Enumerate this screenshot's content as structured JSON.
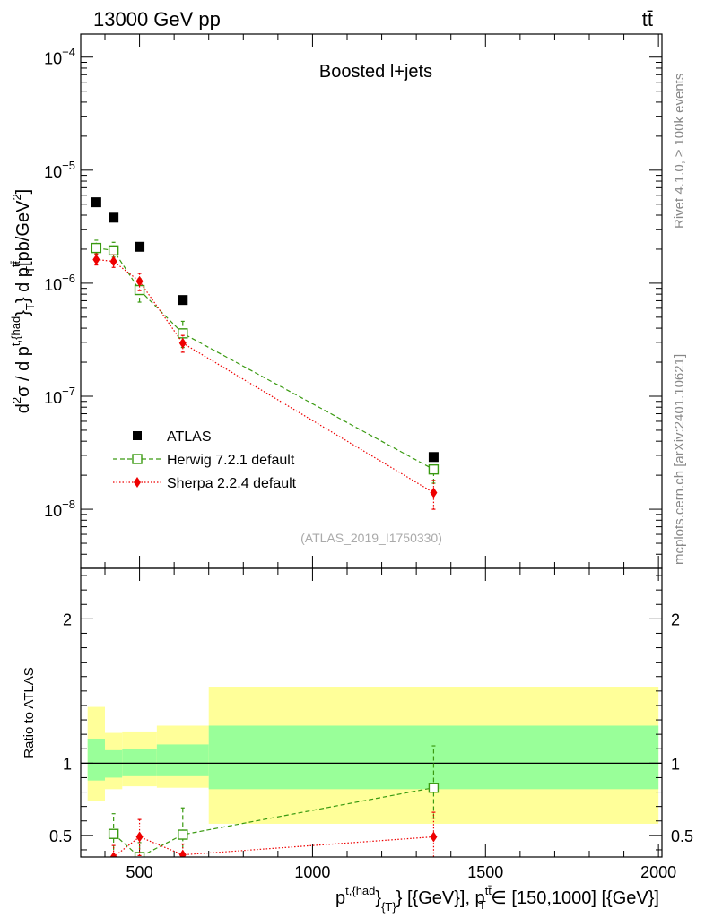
{
  "header": {
    "left": "13000 GeV pp",
    "right": "tt̄"
  },
  "side_labels": {
    "rivet": "Rivet 4.1.0, ≥ 100k events",
    "mcplots": "mcplots.cern.ch [arXiv:2401.10621]"
  },
  "chart_data": [
    {
      "type": "scatter",
      "panel": "main",
      "title": "Boosted l+jets",
      "watermark": "(ATLAS_2019_I1750330)",
      "yscale": "log",
      "xlim": [
        330,
        2010
      ],
      "ylim": [
        3e-09,
        0.00016
      ],
      "ylabel_parts": {
        "d2": "d",
        "sup2": "2",
        "sigma": "σ  /  d p",
        "sup_thad": "t,{had",
        "sub_T": "T",
        "close": "} d p",
        "sup_tt": "tt̄",
        "sub_T2": "T",
        "unit": "[pb/GeV",
        "unit_sup": "2",
        "unit_close": "]"
      },
      "y_tick_labels": [
        {
          "base": "10",
          "exp": "−8",
          "value": 1e-08
        },
        {
          "base": "10",
          "exp": "−7",
          "value": 1e-07
        },
        {
          "base": "10",
          "exp": "−6",
          "value": 1e-06
        },
        {
          "base": "10",
          "exp": "−5",
          "value": 1e-05
        },
        {
          "base": "10",
          "exp": "−4",
          "value": 0.0001
        }
      ],
      "legend": [
        {
          "key": "atlas",
          "label": "ATLAS"
        },
        {
          "key": "herwig",
          "label": "Herwig 7.2.1 default"
        },
        {
          "key": "sherpa",
          "label": "Sherpa 2.2.4 default"
        }
      ],
      "series": [
        {
          "key": "atlas",
          "name": "ATLAS",
          "color": "#000000",
          "x": [
            375,
            425,
            500,
            625,
            1350
          ],
          "y": [
            5.2e-06,
            3.8e-06,
            2.1e-06,
            7.1e-07,
            2.9e-08
          ]
        },
        {
          "key": "herwig",
          "name": "Herwig 7.2.1 default",
          "color": "#3a9a11",
          "x": [
            375,
            425,
            500,
            625,
            1350
          ],
          "y": [
            2.05e-06,
            1.95e-06,
            8.7e-07,
            3.6e-07,
            2.25e-08
          ],
          "err_lo": [
            1.8e-06,
            1.7e-06,
            6.8e-07,
            2.7e-07,
            1.7e-08
          ],
          "err_hi": [
            2.4e-06,
            2.3e-06,
            1.1e-06,
            4.6e-07,
            3.1e-08
          ]
        },
        {
          "key": "sherpa",
          "name": "Sherpa 2.2.4 default",
          "color": "#ee0000",
          "x": [
            375,
            425,
            500,
            625,
            1350
          ],
          "y": [
            1.62e-06,
            1.56e-06,
            1.04e-06,
            2.95e-07,
            1.4e-08
          ],
          "err_lo": [
            1.45e-06,
            1.38e-06,
            8.6e-07,
            2.45e-07,
            1e-08
          ],
          "err_hi": [
            1.82e-06,
            1.78e-06,
            1.22e-06,
            3.45e-07,
            1.8e-08
          ]
        }
      ]
    },
    {
      "type": "scatter",
      "panel": "ratio",
      "ylabel": "Ratio to ATLAS",
      "xlim": [
        330,
        2010
      ],
      "ylim": [
        0.35,
        2.35
      ],
      "x_tick_labels": [
        {
          "label": "500",
          "value": 500
        },
        {
          "label": "1000",
          "value": 1000
        },
        {
          "label": "1500",
          "value": 1500
        },
        {
          "label": "2000",
          "value": 2000
        }
      ],
      "y_tick_labels": [
        {
          "label": "0.5",
          "value": 0.5
        },
        {
          "label": "1",
          "value": 1
        },
        {
          "label": "2",
          "value": 2
        }
      ],
      "xlabel_parts": {
        "p1": "p",
        "sup1": "t,{had",
        "close1": "}",
        "sub1": "{T}",
        "mid": "} [{GeV}], p",
        "sup2": "tt̄",
        "sub2": "T",
        "tail": " ∈ [150,1000] [{GeV}]"
      },
      "bands": [
        {
          "x": [
            350,
            400
          ],
          "yellow": [
            0.74,
            1.39
          ],
          "green": [
            0.88,
            1.17
          ]
        },
        {
          "x": [
            400,
            450
          ],
          "yellow": [
            0.82,
            1.21
          ],
          "green": [
            0.9,
            1.09
          ]
        },
        {
          "x": [
            450,
            550
          ],
          "yellow": [
            0.84,
            1.22
          ],
          "green": [
            0.91,
            1.1
          ]
        },
        {
          "x": [
            550,
            700
          ],
          "yellow": [
            0.83,
            1.26
          ],
          "green": [
            0.91,
            1.13
          ]
        },
        {
          "x": [
            700,
            2000
          ],
          "yellow": [
            0.58,
            1.53
          ],
          "green": [
            0.82,
            1.26
          ]
        }
      ],
      "series": [
        {
          "key": "herwig",
          "name": "Herwig 7.2.1 default",
          "color": "#3a9a11",
          "x": [
            425,
            500,
            625,
            1350
          ],
          "y": [
            0.51,
            0.35,
            0.505,
            0.83
          ],
          "err_lo": [
            0.35,
            0.3,
            0.36,
            0.62
          ],
          "err_hi": [
            0.65,
            0.45,
            0.69,
            1.12
          ]
        },
        {
          "key": "sherpa",
          "name": "Sherpa 2.2.4 default",
          "color": "#ee0000",
          "x": [
            425,
            500,
            625,
            1350
          ],
          "y": [
            0.35,
            0.49,
            0.365,
            0.49
          ],
          "err_lo": [
            0.3,
            0.36,
            0.3,
            0.33
          ],
          "err_hi": [
            0.43,
            0.61,
            0.44,
            0.66
          ]
        }
      ]
    }
  ]
}
